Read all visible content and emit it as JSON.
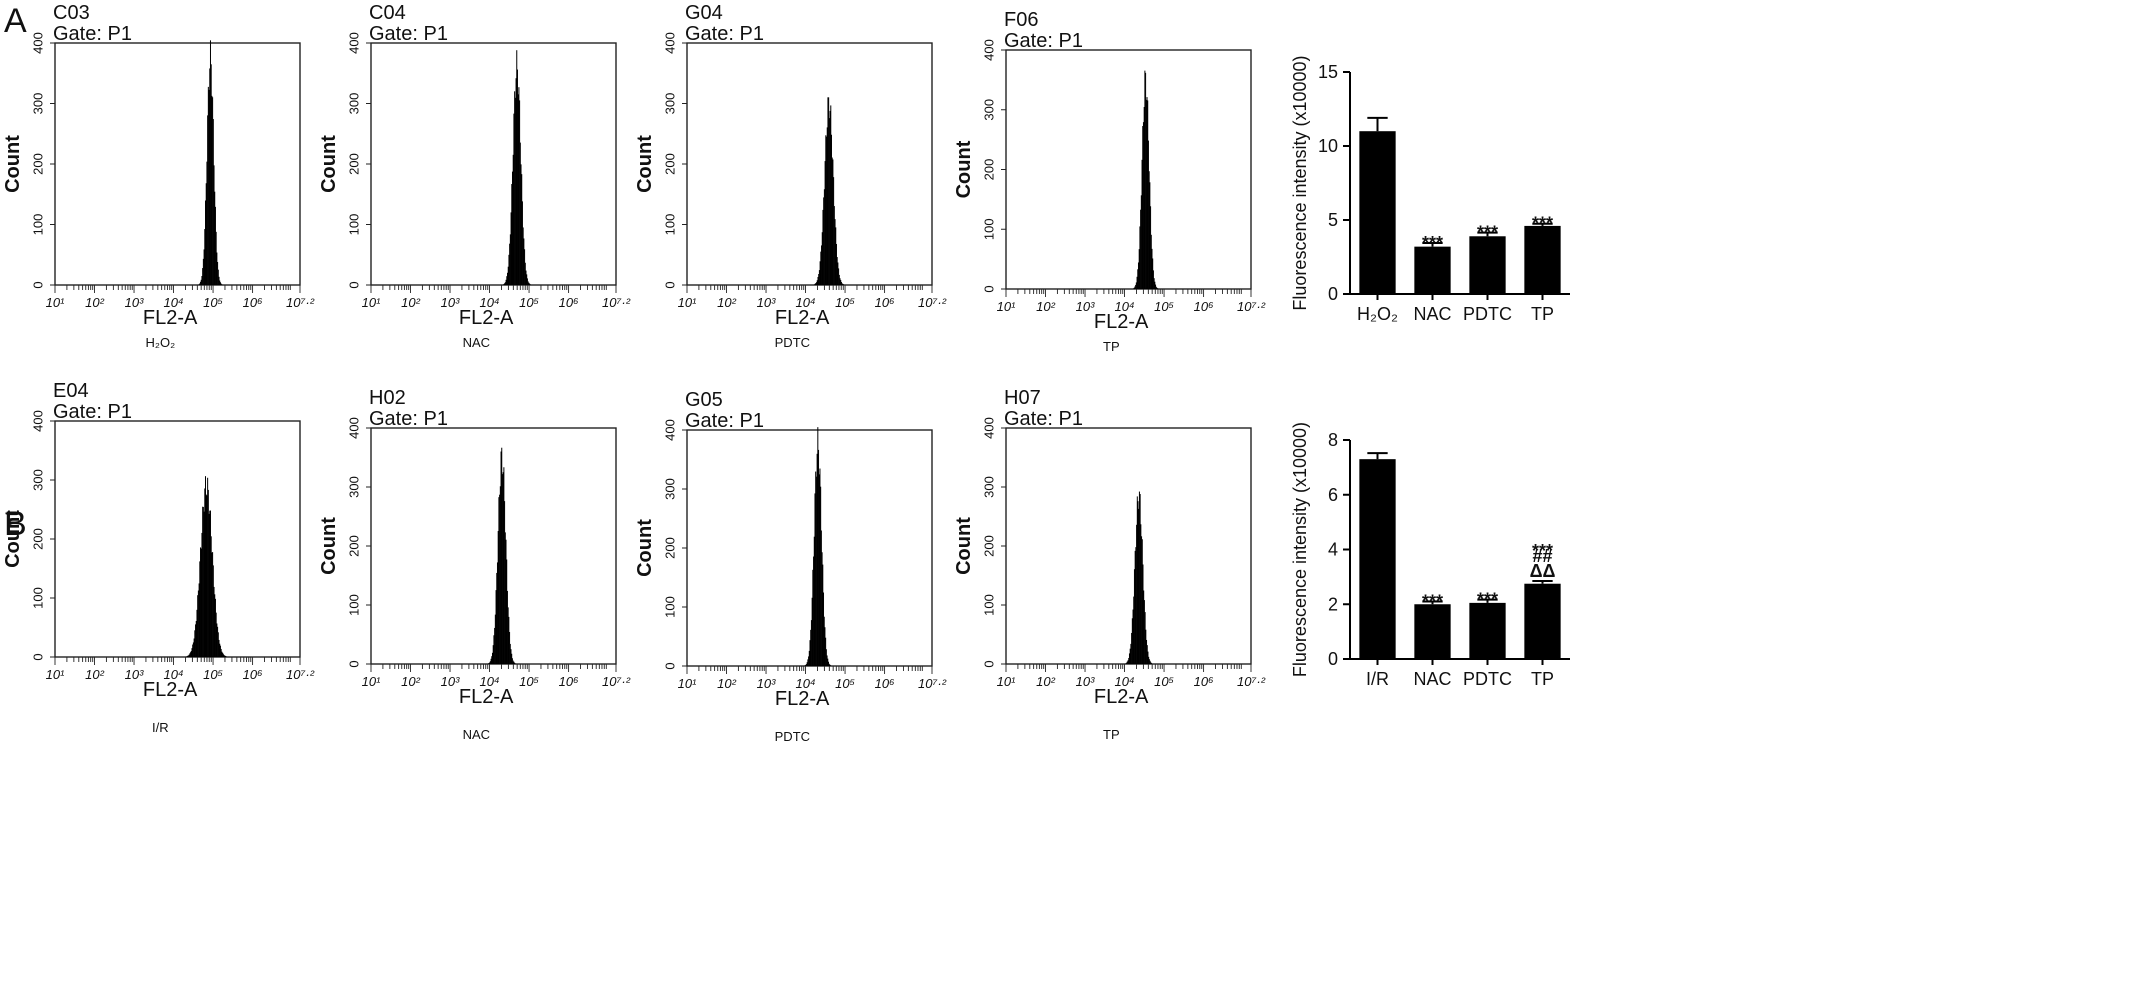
{
  "panel_labels": [
    "A",
    "B"
  ],
  "histogram_common": {
    "gate_label": "Gate: P1",
    "xlabel": "FL2-A",
    "ylabel": "Count",
    "y_ticks": [
      "0",
      "100",
      "200",
      "300",
      "400"
    ],
    "x_ticks": [
      "10¹",
      "10²",
      "10³",
      "10⁴",
      "10⁵",
      "10⁶",
      "10⁷·²"
    ]
  },
  "bar_common": {
    "ylabel": "Fluorescence intensity (x10000)"
  },
  "chart_data": [
    {
      "type": "histogram",
      "panel": "A",
      "sample": "C03",
      "condition": "H₂O₂",
      "peak_log10": 4.92,
      "peak_count": 375,
      "spread": 0.085,
      "x_range": [
        1,
        7.2
      ],
      "ylim": [
        0,
        400
      ]
    },
    {
      "type": "histogram",
      "panel": "A",
      "sample": "C04",
      "condition": "NAC",
      "peak_log10": 4.68,
      "peak_count": 360,
      "spread": 0.1,
      "x_range": [
        1,
        7.2
      ],
      "ylim": [
        0,
        400
      ]
    },
    {
      "type": "histogram",
      "panel": "A",
      "sample": "G04",
      "condition": "PDTC",
      "peak_log10": 4.58,
      "peak_count": 300,
      "spread": 0.11,
      "x_range": [
        1,
        7.2
      ],
      "ylim": [
        0,
        400
      ]
    },
    {
      "type": "histogram",
      "panel": "A",
      "sample": "F06",
      "condition": "TP",
      "peak_log10": 4.52,
      "peak_count": 350,
      "spread": 0.09,
      "x_range": [
        1,
        7.2
      ],
      "ylim": [
        0,
        400
      ]
    },
    {
      "type": "bar",
      "panel": "A",
      "categories": [
        "H₂O₂",
        "NAC",
        "PDTC",
        "TP"
      ],
      "values": [
        11.0,
        3.2,
        3.9,
        4.6
      ],
      "errors": [
        0.9,
        0.25,
        0.25,
        0.15
      ],
      "annotations": [
        [],
        [
          "***"
        ],
        [
          "***"
        ],
        [
          "***"
        ]
      ],
      "ylim": [
        0,
        15
      ],
      "y_ticks": [
        0,
        5,
        10,
        15
      ],
      "grid": false
    },
    {
      "type": "histogram",
      "panel": "B",
      "sample": "E04",
      "condition": "I/R",
      "peak_log10": 4.82,
      "peak_count": 290,
      "spread": 0.15,
      "x_range": [
        1,
        7.2
      ],
      "ylim": [
        0,
        400
      ]
    },
    {
      "type": "histogram",
      "panel": "B",
      "sample": "H02",
      "condition": "NAC",
      "peak_log10": 4.3,
      "peak_count": 350,
      "spread": 0.1,
      "x_range": [
        1,
        7.2
      ],
      "ylim": [
        0,
        400
      ]
    },
    {
      "type": "histogram",
      "panel": "B",
      "sample": "G05",
      "condition": "PDTC",
      "peak_log10": 4.3,
      "peak_count": 375,
      "spread": 0.095,
      "x_range": [
        1,
        7.2
      ],
      "ylim": [
        0,
        400
      ]
    },
    {
      "type": "histogram",
      "panel": "B",
      "sample": "H07",
      "condition": "TP",
      "peak_log10": 4.35,
      "peak_count": 285,
      "spread": 0.1,
      "x_range": [
        1,
        7.2
      ],
      "ylim": [
        0,
        400
      ]
    },
    {
      "type": "bar",
      "panel": "B",
      "categories": [
        "I/R",
        "NAC",
        "PDTC",
        "TP"
      ],
      "values": [
        7.3,
        2.0,
        2.05,
        2.75
      ],
      "errors": [
        0.22,
        0.1,
        0.12,
        0.1
      ],
      "annotations": [
        [],
        [
          "***"
        ],
        [
          "***"
        ],
        [
          "***",
          "##",
          "ΔΔ"
        ]
      ],
      "ylim": [
        0,
        8
      ],
      "y_ticks": [
        0,
        2,
        4,
        6,
        8
      ],
      "grid": false
    }
  ]
}
